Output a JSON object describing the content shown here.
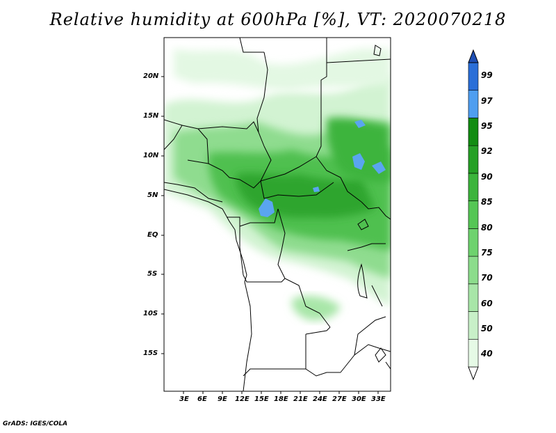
{
  "title": "Relative humidity at 600hPa [%], VT: 2020070218",
  "credit": "GrADS: IGES/COLA",
  "map": {
    "lon_range": [
      0,
      35
    ],
    "lat_range": [
      -20,
      25
    ],
    "lat_ticks": [
      "20N",
      "15N",
      "10N",
      "5N",
      "EQ",
      "5S",
      "10S",
      "15S"
    ],
    "lon_ticks": [
      "3E",
      "6E",
      "9E",
      "12E",
      "15E",
      "18E",
      "21E",
      "24E",
      "27E",
      "30E",
      "33E"
    ]
  },
  "colorbar": {
    "levels": [
      "40",
      "50",
      "60",
      "70",
      "75",
      "80",
      "85",
      "90",
      "92",
      "95",
      "97",
      "99"
    ],
    "colors": [
      "#ffffff",
      "#e6fae6",
      "#c8f0c8",
      "#a8e6a8",
      "#8cdc8c",
      "#6ed26e",
      "#55c655",
      "#3cb43c",
      "#26a026",
      "#128c12",
      "#4f9ef0",
      "#2b6fd8",
      "#1f4fb4"
    ]
  }
}
